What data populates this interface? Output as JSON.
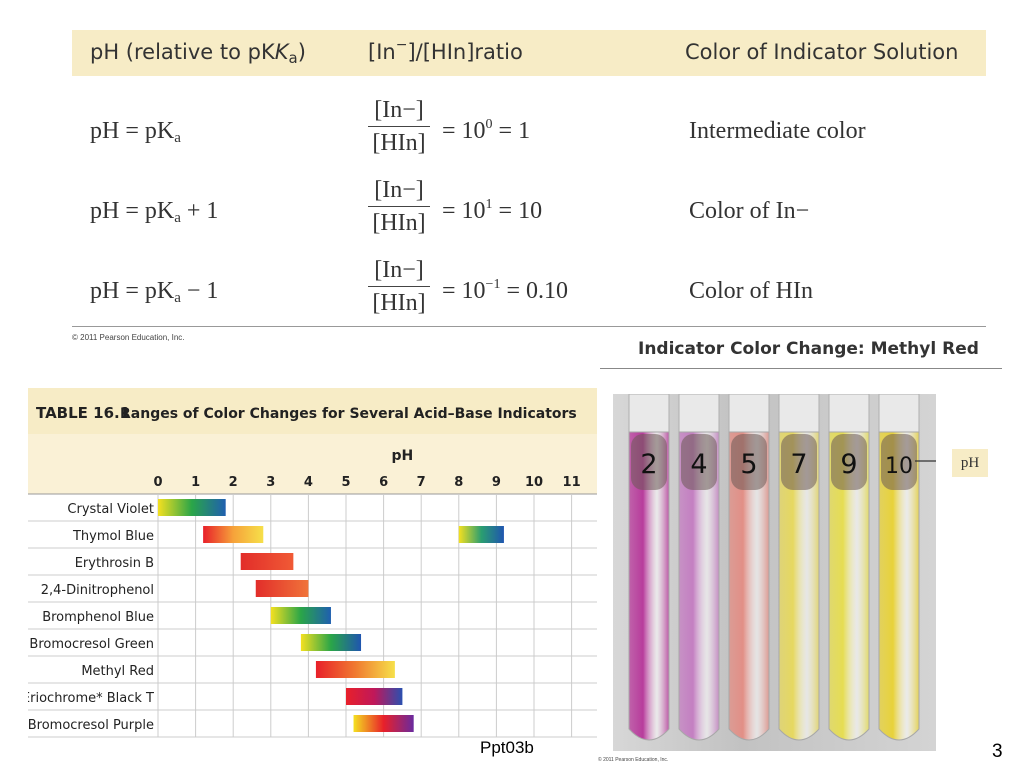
{
  "top_table": {
    "headers": [
      "pH (relative to pK",
      "a",
      ")",
      "[In",
      "−",
      "]/[HIn]ratio",
      "Color of Indicator Solution"
    ],
    "rows": [
      {
        "lhs_a": "pH = pK",
        "lhs_sub": "a",
        "lhs_b": "",
        "num": "[In−]",
        "den": "[HIn]",
        "rhs_a": "= 10",
        "rhs_sup": "0",
        "rhs_b": " = 1",
        "result": "Intermediate color"
      },
      {
        "lhs_a": "pH = pK",
        "lhs_sub": "a",
        "lhs_b": " + 1",
        "num": "[In−]",
        "den": "[HIn]",
        "rhs_a": "= 10",
        "rhs_sup": "1",
        "rhs_b": " = 10",
        "result": "Color of In−"
      },
      {
        "lhs_a": "pH = pK",
        "lhs_sub": "a",
        "lhs_b": " − 1",
        "num": "[In−]",
        "den": "[HIn]",
        "rhs_a": "= 10",
        "rhs_sup": "−1",
        "rhs_b": " = 0.10",
        "result": "Color of HIn"
      }
    ],
    "copyright": "© 2011 Pearson Education, Inc."
  },
  "methyl_red": {
    "title": "Indicator Color Change: Methyl Red",
    "ph_label": "pH",
    "tubes": [
      {
        "label": "2",
        "color": "#b83c9c"
      },
      {
        "label": "4",
        "color": "#c47fc2"
      },
      {
        "label": "5",
        "color": "#e28f86"
      },
      {
        "label": "7",
        "color": "#e6d860"
      },
      {
        "label": "9",
        "color": "#e6dd52"
      },
      {
        "label": "10",
        "color": "#e8d23a"
      }
    ],
    "copyright": "© 2011 Pearson Education, Inc."
  },
  "table_16_1": {
    "label": "TABLE 16.1",
    "title": "Ranges of Color Changes for Several Acid–Base Indicators",
    "axis_label": "pH",
    "ticks": [
      "0",
      "1",
      "2",
      "3",
      "4",
      "5",
      "6",
      "7",
      "8",
      "9",
      "10",
      "11"
    ],
    "indicators": [
      {
        "name": "Crystal Violet",
        "ranges": [
          {
            "from": 0.0,
            "to": 1.8,
            "colors": [
              "#f4e020",
              "#2aa548",
              "#1f5fb0"
            ]
          }
        ]
      },
      {
        "name": "Thymol Blue",
        "ranges": [
          {
            "from": 1.2,
            "to": 2.8,
            "colors": [
              "#e8202a",
              "#f6a23a",
              "#f6e04a"
            ]
          },
          {
            "from": 8.0,
            "to": 9.2,
            "colors": [
              "#f4e020",
              "#2a9e70",
              "#1f55b0"
            ]
          }
        ]
      },
      {
        "name": "Erythrosin B",
        "ranges": [
          {
            "from": 2.2,
            "to": 3.6,
            "colors": [
              "#e22d2a",
              "#f05a35"
            ]
          }
        ]
      },
      {
        "name": "2,4-Dinitrophenol",
        "ranges": [
          {
            "from": 2.6,
            "to": 4.0,
            "colors": [
              "#e22d2a",
              "#f0743a"
            ]
          }
        ]
      },
      {
        "name": "Bromphenol Blue",
        "ranges": [
          {
            "from": 3.0,
            "to": 4.6,
            "colors": [
              "#f4e020",
              "#2aa548",
              "#1f5fb0"
            ]
          }
        ]
      },
      {
        "name": "Bromocresol Green",
        "ranges": [
          {
            "from": 3.8,
            "to": 5.4,
            "colors": [
              "#f4e020",
              "#2aa548",
              "#1f55b0"
            ]
          }
        ]
      },
      {
        "name": "Methyl Red",
        "ranges": [
          {
            "from": 4.2,
            "to": 6.3,
            "colors": [
              "#e8202a",
              "#f07a30",
              "#f6e04a"
            ]
          }
        ]
      },
      {
        "name": "Eriochrome* Black T",
        "ranges": [
          {
            "from": 5.0,
            "to": 6.5,
            "colors": [
              "#e8202a",
              "#c0185a",
              "#2a50b0"
            ]
          }
        ]
      },
      {
        "name": "Bromocresol Purple",
        "ranges": [
          {
            "from": 5.2,
            "to": 6.8,
            "colors": [
              "#f4e020",
              "#e8202a",
              "#6a2a9e"
            ]
          }
        ]
      }
    ]
  },
  "footer": {
    "label": "Ppt03b",
    "page": "3"
  }
}
